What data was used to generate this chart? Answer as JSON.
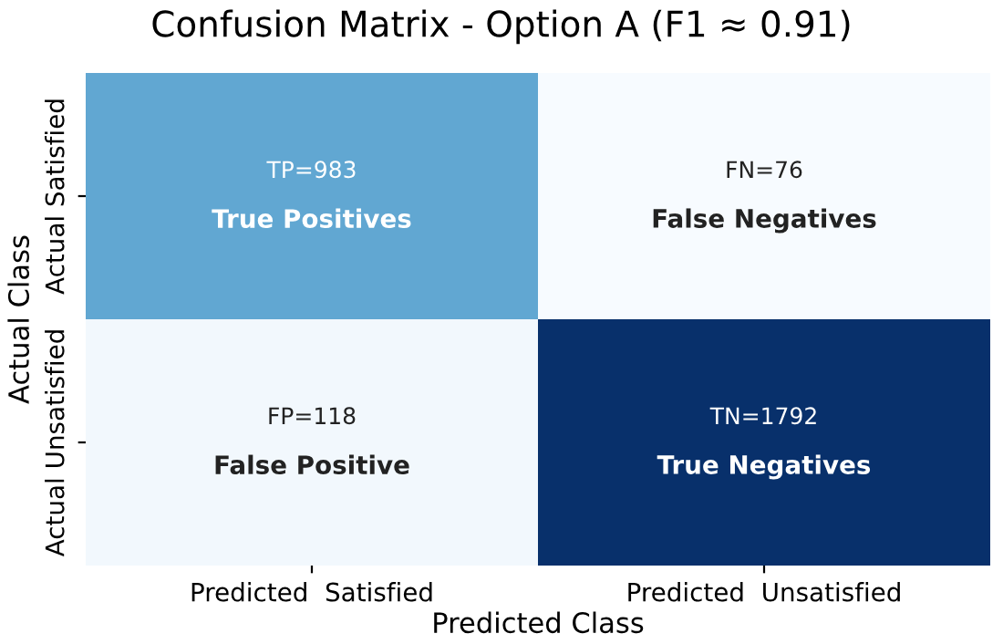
{
  "chart_data": {
    "type": "heatmap",
    "title": "Confusion Matrix - Option A (F1 ≈ 0.91)",
    "xlabel": "Predicted Class",
    "ylabel": "Actual Class",
    "categories": [
      "Predicted  Satisfied",
      "Predicted  Unsatisfied"
    ],
    "y_categories": [
      "Actual Satisfied",
      "Actual Unsatisfied"
    ],
    "cells": [
      [
        983,
        76
      ],
      [
        118,
        1792
      ]
    ],
    "cell_labels": [
      [
        "TP=983",
        "FN=76"
      ],
      [
        "FP=118",
        "TN=1792"
      ]
    ],
    "annotations": [
      "True Positives",
      "False Negatives",
      "False Positive",
      "True Negatives"
    ]
  }
}
